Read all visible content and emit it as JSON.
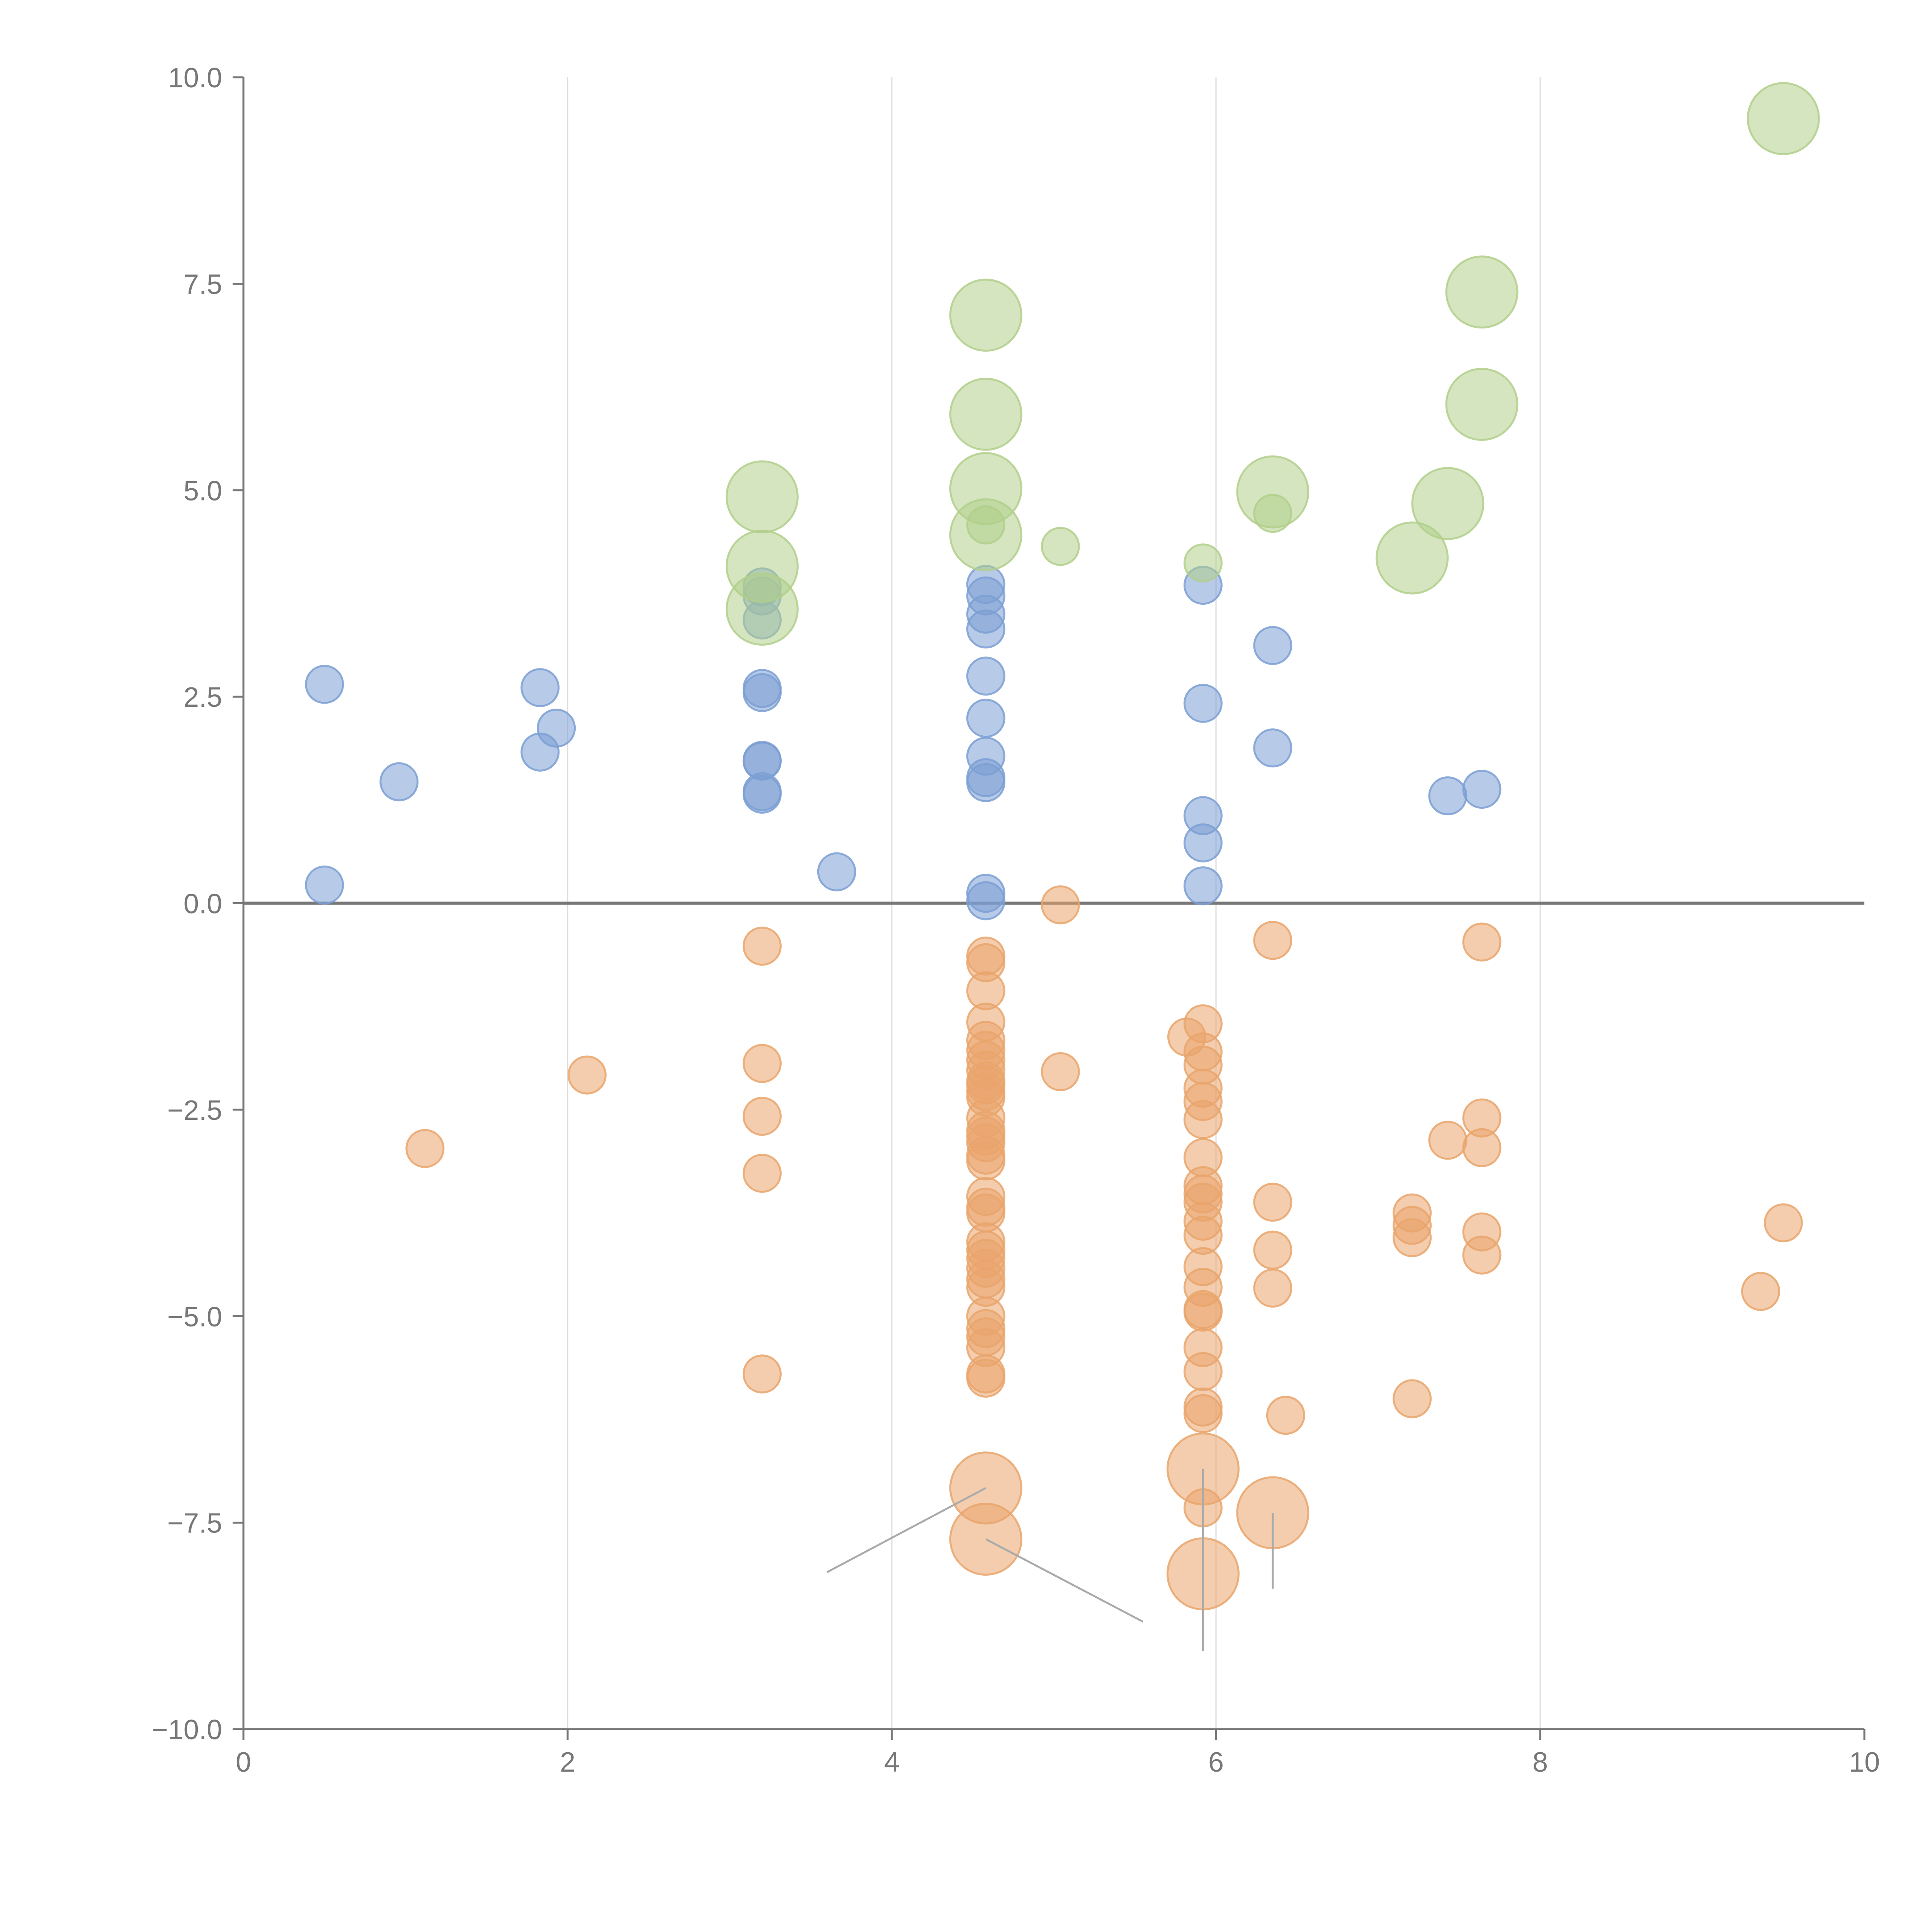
{
  "chart_data": {
    "type": "scatter",
    "title": "",
    "xlabel": "",
    "ylabel": "",
    "xlim": [
      0,
      10
    ],
    "ylim": [
      -10,
      10
    ],
    "grid": "vertical",
    "x_ticks": [
      0,
      2,
      4,
      6,
      8,
      10
    ],
    "y_ticks": [
      -10,
      -7.5,
      -5,
      -2.5,
      0,
      2.5,
      5,
      7.5,
      10
    ],
    "x_tick_labels": [
      "0",
      "2",
      "4",
      "6",
      "8",
      "10"
    ],
    "y_tick_labels": [
      "−10.0",
      "−7.5",
      "−5.0",
      "−2.5",
      "0.0",
      "2.5",
      "5.0",
      "7.5",
      "10.0"
    ],
    "series": [
      {
        "name": "blue",
        "color": "#7b9fd4",
        "size": 1,
        "points": [
          [
            0.5,
            2.65
          ],
          [
            0.5,
            0.22
          ],
          [
            0.96,
            1.47
          ],
          [
            1.83,
            2.61
          ],
          [
            1.83,
            1.83
          ],
          [
            1.93,
            2.12
          ],
          [
            3.2,
            3.83
          ],
          [
            3.2,
            3.72
          ],
          [
            3.2,
            3.43
          ],
          [
            3.2,
            2.6
          ],
          [
            3.2,
            2.55
          ],
          [
            3.2,
            1.73
          ],
          [
            3.2,
            1.72
          ],
          [
            3.2,
            1.35
          ],
          [
            3.2,
            1.32
          ],
          [
            3.66,
            0.38
          ],
          [
            4.58,
            3.86
          ],
          [
            4.58,
            3.72
          ],
          [
            4.58,
            3.5
          ],
          [
            4.58,
            3.32
          ],
          [
            4.58,
            2.75
          ],
          [
            4.58,
            2.24
          ],
          [
            4.58,
            1.78
          ],
          [
            4.58,
            1.52
          ],
          [
            4.58,
            1.46
          ],
          [
            4.58,
            0.12
          ],
          [
            4.58,
            0.03
          ],
          [
            5.92,
            3.85
          ],
          [
            5.92,
            2.42
          ],
          [
            5.92,
            1.06
          ],
          [
            5.92,
            0.73
          ],
          [
            5.92,
            0.21
          ],
          [
            6.35,
            3.12
          ],
          [
            6.35,
            1.88
          ],
          [
            7.43,
            1.3
          ],
          [
            7.64,
            1.38
          ]
        ]
      },
      {
        "name": "orange",
        "color": "#e9a46b",
        "size": 1,
        "points": [
          [
            1.12,
            -2.97
          ],
          [
            2.12,
            -2.08
          ],
          [
            3.2,
            -0.52
          ],
          [
            3.2,
            -1.94
          ],
          [
            3.2,
            -2.58
          ],
          [
            3.2,
            -3.27
          ],
          [
            3.2,
            -5.7
          ],
          [
            4.58,
            -0.64
          ],
          [
            4.58,
            -0.72
          ],
          [
            4.58,
            -1.06
          ],
          [
            4.58,
            -1.44
          ],
          [
            4.58,
            -1.66
          ],
          [
            4.58,
            -1.78
          ],
          [
            4.58,
            -1.9
          ],
          [
            4.58,
            -2.02
          ],
          [
            4.58,
            -2.15
          ],
          [
            4.58,
            -2.2
          ],
          [
            4.58,
            -2.28
          ],
          [
            4.58,
            -2.35
          ],
          [
            4.58,
            -2.6
          ],
          [
            4.58,
            -2.75
          ],
          [
            4.58,
            -2.82
          ],
          [
            4.58,
            -2.9
          ],
          [
            4.58,
            -3.05
          ],
          [
            4.58,
            -3.12
          ],
          [
            4.58,
            -3.55
          ],
          [
            4.58,
            -3.68
          ],
          [
            4.58,
            -3.75
          ],
          [
            4.58,
            -4.1
          ],
          [
            4.58,
            -4.2
          ],
          [
            4.58,
            -4.3
          ],
          [
            4.58,
            -4.42
          ],
          [
            4.58,
            -4.55
          ],
          [
            4.58,
            -4.65
          ],
          [
            4.58,
            -5.0
          ],
          [
            4.58,
            -5.15
          ],
          [
            4.58,
            -5.25
          ],
          [
            4.58,
            -5.38
          ],
          [
            4.58,
            -5.7
          ],
          [
            4.58,
            -5.75
          ],
          [
            5.04,
            -0.02
          ],
          [
            5.04,
            -2.04
          ],
          [
            5.82,
            -1.62
          ],
          [
            5.92,
            -1.46
          ],
          [
            5.92,
            -1.8
          ],
          [
            5.92,
            -1.96
          ],
          [
            5.92,
            -2.24
          ],
          [
            5.92,
            -2.4
          ],
          [
            5.92,
            -2.62
          ],
          [
            5.92,
            -3.08
          ],
          [
            5.92,
            -3.42
          ],
          [
            5.92,
            -3.52
          ],
          [
            5.92,
            -3.62
          ],
          [
            5.92,
            -3.85
          ],
          [
            5.92,
            -4.02
          ],
          [
            5.92,
            -4.4
          ],
          [
            5.92,
            -4.65
          ],
          [
            5.92,
            -4.92
          ],
          [
            5.92,
            -4.95
          ],
          [
            5.92,
            -5.38
          ],
          [
            5.92,
            -5.67
          ],
          [
            5.92,
            -6.1
          ],
          [
            5.92,
            -6.18
          ],
          [
            5.92,
            -7.32
          ],
          [
            6.35,
            -0.45
          ],
          [
            6.35,
            -3.62
          ],
          [
            6.35,
            -4.2
          ],
          [
            6.35,
            -4.66
          ],
          [
            6.43,
            -6.2
          ],
          [
            7.21,
            -3.75
          ],
          [
            7.21,
            -3.9
          ],
          [
            7.21,
            -4.05
          ],
          [
            7.21,
            -6.0
          ],
          [
            7.43,
            -2.87
          ],
          [
            7.64,
            -0.47
          ],
          [
            7.64,
            -2.6
          ],
          [
            7.64,
            -2.96
          ],
          [
            7.64,
            -3.98
          ],
          [
            7.64,
            -4.26
          ],
          [
            9.36,
            -4.7
          ],
          [
            9.5,
            -3.87
          ]
        ]
      },
      {
        "name": "orange-large",
        "color": "#e9a46b",
        "size": 2,
        "points": [
          [
            4.58,
            -7.08
          ],
          [
            4.58,
            -7.7
          ],
          [
            5.92,
            -6.85
          ],
          [
            5.92,
            -8.12
          ],
          [
            6.35,
            -7.38
          ]
        ]
      },
      {
        "name": "green",
        "color": "#b1cf8b",
        "size": 1,
        "points": [
          [
            4.58,
            4.58
          ],
          [
            5.04,
            4.32
          ],
          [
            5.92,
            4.12
          ],
          [
            6.35,
            4.72
          ]
        ]
      },
      {
        "name": "green-large",
        "color": "#b1cf8b",
        "size": 2,
        "points": [
          [
            3.2,
            4.92
          ],
          [
            3.2,
            4.08
          ],
          [
            3.2,
            3.56
          ],
          [
            4.58,
            7.12
          ],
          [
            4.58,
            5.92
          ],
          [
            4.58,
            5.02
          ],
          [
            4.58,
            4.46
          ],
          [
            6.35,
            4.98
          ],
          [
            7.21,
            4.18
          ],
          [
            7.43,
            4.84
          ],
          [
            7.64,
            7.4
          ],
          [
            7.64,
            6.04
          ],
          [
            9.5,
            9.5
          ]
        ]
      }
    ],
    "annotations": [
      {
        "text": "",
        "x": 4.58,
        "y": -7.08,
        "tx": 3.6,
        "ty": -8.1,
        "color": "#ffffff"
      },
      {
        "text": "",
        "x": 4.58,
        "y": -7.7,
        "tx": 5.55,
        "ty": -8.7,
        "color": "#ffffff"
      },
      {
        "text": "",
        "x": 5.92,
        "y": -6.85,
        "tx": 5.92,
        "ty": -9.05,
        "color": "#ffffff"
      },
      {
        "text": "",
        "x": 6.35,
        "y": -7.38,
        "tx": 6.35,
        "ty": -8.3,
        "color": "#ffffff"
      }
    ],
    "axis_color": "#777777",
    "zero_line_color": "#777777",
    "grid_color": "#dddddd"
  }
}
